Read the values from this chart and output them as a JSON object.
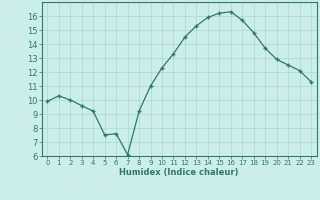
{
  "x": [
    0,
    1,
    2,
    3,
    4,
    5,
    6,
    7,
    8,
    9,
    10,
    11,
    12,
    13,
    14,
    15,
    16,
    17,
    18,
    19,
    20,
    21,
    22,
    23
  ],
  "y": [
    9.9,
    10.3,
    10.0,
    9.6,
    9.2,
    7.5,
    7.6,
    6.1,
    9.2,
    11.0,
    12.3,
    13.3,
    14.5,
    15.3,
    15.9,
    16.2,
    16.3,
    15.7,
    14.8,
    13.7,
    12.9,
    12.5,
    12.1,
    11.3
  ],
  "xlabel": "Humidex (Indice chaleur)",
  "bg_color": "#cceee8",
  "grid_color": "#aad8d0",
  "line_color": "#2d7a6a",
  "marker_color": "#2d7a6a",
  "xlim": [
    -0.5,
    23.5
  ],
  "ylim": [
    6,
    17
  ],
  "yticks": [
    6,
    7,
    8,
    9,
    10,
    11,
    12,
    13,
    14,
    15,
    16
  ],
  "xticks": [
    0,
    1,
    2,
    3,
    4,
    5,
    6,
    7,
    8,
    9,
    10,
    11,
    12,
    13,
    14,
    15,
    16,
    17,
    18,
    19,
    20,
    21,
    22,
    23
  ]
}
